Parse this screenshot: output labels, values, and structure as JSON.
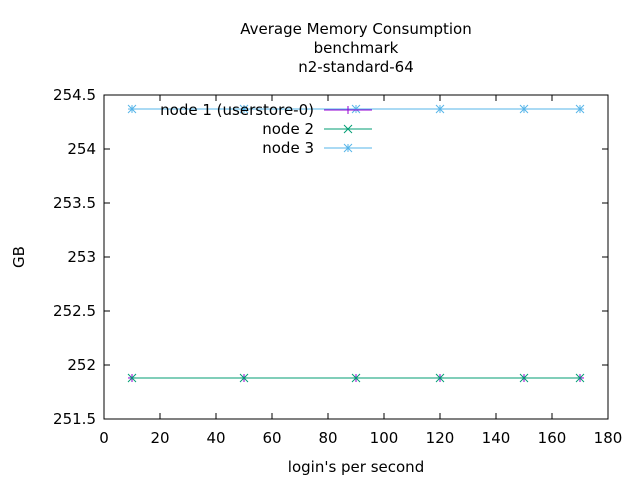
{
  "chart_data": {
    "type": "line",
    "title": [
      "Average Memory Consumption",
      "benchmark",
      "n2-standard-64"
    ],
    "xlabel": "login's per second",
    "ylabel": "GB",
    "xlim": [
      0,
      180
    ],
    "ylim": [
      251.5,
      254.5
    ],
    "xticks": [
      0,
      20,
      40,
      60,
      80,
      100,
      120,
      140,
      160,
      180
    ],
    "yticks": [
      "251.5",
      "252",
      "252.5",
      "253",
      "253.5",
      "254",
      "254.5"
    ],
    "grid": false,
    "legend_position": "top-left",
    "x": [
      10,
      50,
      90,
      120,
      150,
      170
    ],
    "series": [
      {
        "name": "node 1 (userstore-0)",
        "color": "#9400d3",
        "marker": "plus",
        "values": [
          251.88,
          251.88,
          251.88,
          251.88,
          251.88,
          251.88
        ]
      },
      {
        "name": "node 2",
        "color": "#009e73",
        "marker": "cross",
        "values": [
          251.88,
          251.88,
          251.88,
          251.88,
          251.88,
          251.88
        ]
      },
      {
        "name": "node 3",
        "color": "#56b4e9",
        "marker": "star",
        "values": [
          254.37,
          254.37,
          254.37,
          254.37,
          254.37,
          254.37
        ]
      }
    ]
  }
}
